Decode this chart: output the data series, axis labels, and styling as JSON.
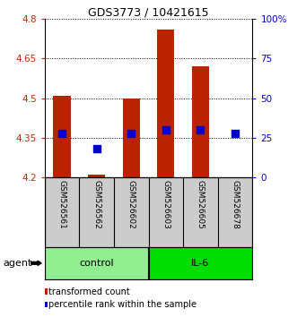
{
  "title": "GDS3773 / 10421615",
  "samples": [
    "GSM526561",
    "GSM526562",
    "GSM526602",
    "GSM526603",
    "GSM526605",
    "GSM526678"
  ],
  "groups": [
    {
      "name": "control",
      "color": "#90EE90",
      "indices": [
        0,
        1,
        2
      ]
    },
    {
      "name": "IL-6",
      "color": "#00DD00",
      "indices": [
        3,
        4,
        5
      ]
    }
  ],
  "transformed_counts": [
    4.51,
    4.21,
    4.5,
    4.76,
    4.62,
    4.2
  ],
  "percentile_ranks_pct": [
    28,
    18,
    28,
    30,
    30,
    28
  ],
  "ylim": [
    4.2,
    4.8
  ],
  "y_ticks": [
    4.2,
    4.35,
    4.5,
    4.65,
    4.8
  ],
  "right_y_ticks": [
    0,
    25,
    50,
    75,
    100
  ],
  "right_y_tick_labels": [
    "0",
    "25",
    "50",
    "75",
    "100%"
  ],
  "bar_color": "#BB2200",
  "dot_color": "#0000CC",
  "bar_width": 0.5,
  "dot_size": 40,
  "background_color": "#ffffff",
  "label_color_left": "#CC2200",
  "label_color_right": "#0000CC",
  "legend_red_label": "transformed count",
  "legend_blue_label": "percentile rank within the sample",
  "sample_bg": "#cccccc",
  "group_colors": [
    "#90EE90",
    "#00DD00"
  ]
}
